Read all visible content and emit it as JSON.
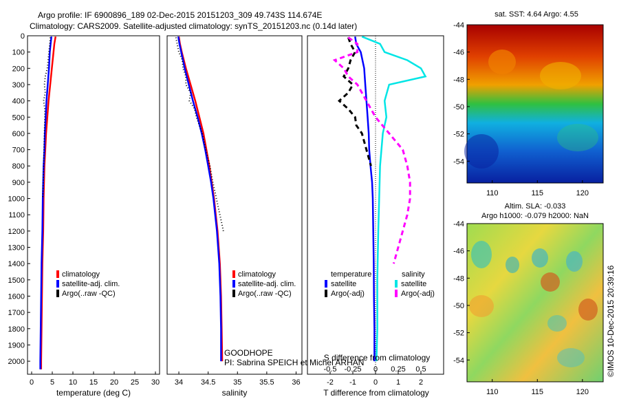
{
  "header": {
    "title_line1": "Argo profile: IF 6900896_189 02-Dec-2015 20151203_309 49.743S 114.674E",
    "title_line2": "Climatology: CARS2009. Satellite-adjusted climatology: synTS_20151203.nc (0.14d later)"
  },
  "credits": {
    "project": "GOODHOPE",
    "pi": "PI: Sabrina SPEICH et Michel ARHAN",
    "imos": "©IMOS 10-Dec-2015 20:39:16"
  },
  "maps": {
    "sst_title": "sat. SST: 4.64  Argo: 4.55",
    "sla_title1": "Altim. SLA: -0.033",
    "sla_title2": "Argo h1000: -0.079 h2000: NaN",
    "lat_ticks": [
      "-44",
      "-46",
      "-48",
      "-50",
      "-52",
      "-54"
    ],
    "lon_ticks": [
      "110",
      "115",
      "120"
    ]
  },
  "chart_data": [
    {
      "type": "line",
      "xlabel": "temperature (deg C)",
      "xlim": [
        -1,
        31
      ],
      "ylim": [
        0,
        2080
      ],
      "y_reversed": true,
      "xticks": [
        "0",
        "5",
        "10",
        "15",
        "20",
        "25",
        "30"
      ],
      "yticks": [
        "0",
        "100",
        "200",
        "300",
        "400",
        "500",
        "600",
        "700",
        "800",
        "900",
        "1000",
        "1100",
        "1200",
        "1300",
        "1400",
        "1500",
        "1600",
        "1700",
        "1800",
        "1900",
        "2000"
      ],
      "legend": [
        "climatology",
        "satellite-adj. clim.",
        "Argo(..raw -QC)"
      ],
      "series": [
        {
          "name": "climatology",
          "color": "#ff0000",
          "style": "solid",
          "depth": [
            5,
            50,
            100,
            200,
            300,
            400,
            500,
            600,
            700,
            800,
            900,
            1000,
            1200,
            1400,
            1600,
            1800,
            2000,
            2050
          ],
          "values": [
            5.8,
            5.5,
            5.3,
            4.9,
            4.5,
            4.1,
            3.8,
            3.5,
            3.3,
            3.1,
            3.0,
            2.9,
            2.8,
            2.6,
            2.5,
            2.4,
            2.3,
            2.3
          ]
        },
        {
          "name": "satellite-adj. clim.",
          "color": "#0000ff",
          "style": "solid",
          "depth": [
            5,
            50,
            100,
            200,
            300,
            400,
            500,
            600,
            700,
            800,
            900,
            1000,
            1200,
            1400,
            1600,
            1800,
            2000,
            2050
          ],
          "values": [
            4.8,
            4.6,
            4.4,
            4.2,
            3.9,
            3.6,
            3.4,
            3.2,
            3.1,
            2.9,
            2.8,
            2.7,
            2.6,
            2.4,
            2.3,
            2.2,
            2.1,
            2.1
          ]
        },
        {
          "name": "Argo(..raw -QC)",
          "color": "#000000",
          "style": "dotted",
          "depth": [
            10,
            50,
            100,
            150,
            200,
            250,
            300,
            350,
            400,
            450,
            500,
            600,
            700,
            800,
            900,
            1000
          ],
          "values": [
            4.5,
            4.4,
            4.2,
            4.0,
            3.8,
            3.3,
            3.1,
            3.3,
            2.9,
            3.2,
            3.2,
            3.1,
            3.0,
            2.9,
            2.8,
            2.7
          ]
        }
      ]
    },
    {
      "type": "line",
      "xlabel": "salinity",
      "xlim": [
        33.8,
        36.1
      ],
      "ylim": [
        0,
        2080
      ],
      "y_reversed": true,
      "xticks": [
        "34",
        "34.5",
        "35",
        "35.5",
        "36"
      ],
      "legend": [
        "climatology",
        "satellite-adj. clim.",
        "Argo(..raw -QC)"
      ],
      "series": [
        {
          "name": "climatology",
          "color": "#ff0000",
          "style": "solid",
          "depth": [
            5,
            50,
            100,
            200,
            300,
            400,
            500,
            600,
            700,
            800,
            900,
            1000,
            1200,
            1400,
            1600,
            1800,
            2000
          ],
          "values": [
            34.0,
            34.02,
            34.05,
            34.12,
            34.2,
            34.28,
            34.35,
            34.42,
            34.47,
            34.52,
            34.56,
            34.6,
            34.66,
            34.7,
            34.72,
            34.73,
            34.74
          ]
        },
        {
          "name": "satellite-adj. clim.",
          "color": "#0000ff",
          "style": "solid",
          "depth": [
            5,
            50,
            100,
            200,
            300,
            400,
            500,
            600,
            700,
            800,
            900,
            1000,
            1200,
            1400,
            1600,
            1800,
            2000
          ],
          "values": [
            33.99,
            34.01,
            34.04,
            34.1,
            34.17,
            34.24,
            34.32,
            34.39,
            34.45,
            34.5,
            34.55,
            34.59,
            34.65,
            34.69,
            34.71,
            34.72,
            34.72
          ]
        },
        {
          "name": "Argo(..raw -QC)",
          "color": "#000000",
          "style": "dotted",
          "depth": [
            10,
            50,
            100,
            150,
            200,
            250,
            300,
            350,
            400,
            450,
            500,
            600,
            700,
            800,
            900,
            1000,
            1100,
            1200
          ],
          "values": [
            33.95,
            33.97,
            34.0,
            34.06,
            34.07,
            34.12,
            34.12,
            34.2,
            34.18,
            34.27,
            34.3,
            34.4,
            34.46,
            34.53,
            34.58,
            34.64,
            34.7,
            34.76
          ]
        }
      ]
    },
    {
      "type": "line",
      "xlabel": "T difference from climatology",
      "xlabel2": "S difference from climatology",
      "xlim": [
        -3,
        3
      ],
      "ylim": [
        0,
        2080
      ],
      "y_reversed": true,
      "xticks": [
        "-2",
        "-1",
        "0",
        "1",
        "2"
      ],
      "xticks2": [
        "-0.5",
        "-0.25",
        "0",
        "0.25",
        "0.5"
      ],
      "legend_headers": [
        "temperature",
        "salinity"
      ],
      "legend": [
        "satellite",
        "Argo(-adj)",
        "satellite",
        "Argo(-adj)"
      ],
      "series": [
        {
          "name": "satellite",
          "group": "temperature",
          "color": "#0000ff",
          "style": "solid",
          "depth": [
            5,
            50,
            100,
            200,
            300,
            400,
            500,
            600,
            700,
            800,
            900,
            1000,
            1200,
            1400,
            1600,
            1800,
            2000
          ],
          "values": [
            -0.9,
            -0.85,
            -0.65,
            -0.5,
            -0.45,
            -0.4,
            -0.35,
            -0.3,
            -0.28,
            -0.22,
            -0.15,
            -0.12,
            -0.1,
            -0.08,
            -0.07,
            -0.05,
            -0.05
          ]
        },
        {
          "name": "Argo(-adj)",
          "group": "temperature",
          "color": "#000000",
          "style": "dashed",
          "depth": [
            10,
            50,
            100,
            150,
            200,
            250,
            300,
            350,
            400,
            450,
            500,
            550,
            600,
            650,
            700,
            750,
            800
          ],
          "values": [
            -1.2,
            -1.1,
            -0.9,
            -1.1,
            -1.2,
            -1.4,
            -1.0,
            -1.2,
            -1.6,
            -1.2,
            -0.9,
            -0.85,
            -0.6,
            -0.5,
            -0.4,
            -0.3,
            -0.2
          ]
        },
        {
          "name": "satellite",
          "group": "salinity",
          "color": "#00e5e5",
          "style": "solid",
          "depth": [
            5,
            50,
            100,
            150,
            200,
            250,
            300,
            400,
            500,
            600,
            800,
            1000,
            1200,
            1500,
            1800,
            2000
          ],
          "values": [
            -0.15,
            0.05,
            0.1,
            0.35,
            0.5,
            0.55,
            0.15,
            0.1,
            0.12,
            0.08,
            0.05,
            0.04,
            0.03,
            0.02,
            0.02,
            0.01
          ]
        },
        {
          "name": "Argo(-adj)",
          "group": "salinity",
          "color": "#ff00ff",
          "style": "dashed",
          "depth": [
            10,
            50,
            100,
            150,
            200,
            250,
            300,
            400,
            500,
            600,
            700,
            800,
            900,
            1000,
            1100,
            1200,
            1300,
            1400
          ],
          "values": [
            -0.3,
            -0.2,
            -0.2,
            -0.45,
            -0.35,
            -0.3,
            -0.2,
            -0.1,
            0.0,
            0.15,
            0.3,
            0.35,
            0.38,
            0.38,
            0.35,
            0.3,
            0.25,
            0.2
          ]
        }
      ]
    }
  ]
}
